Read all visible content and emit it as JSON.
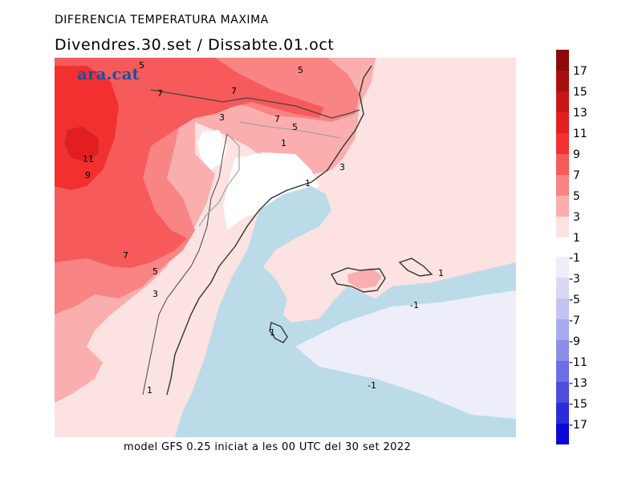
{
  "header": {
    "title": "DIFERENCIA TEMPERATURA MAXIMA",
    "subtitle": "Divendres.30.set  /  Dissabte.01.oct"
  },
  "brand": "ara.cat",
  "footer": "model GFS 0.25 iniciat a les 00 UTC del 30 set 2022",
  "contour_labels": [
    "5",
    "5",
    "7",
    "7",
    "3",
    "7",
    "5",
    "1",
    "11",
    "9",
    "3",
    "1",
    "7",
    "5",
    "3",
    "1",
    "1",
    "-1",
    "1",
    "-1"
  ],
  "legend": {
    "positive": [
      {
        "label": "17",
        "color": "#8b0a0a"
      },
      {
        "label": "15",
        "color": "#a81010"
      },
      {
        "label": "13",
        "color": "#c81616"
      },
      {
        "label": "11",
        "color": "#e21e1e"
      },
      {
        "label": "9",
        "color": "#f23030"
      },
      {
        "label": "7",
        "color": "#f65a5a"
      },
      {
        "label": "5",
        "color": "#f88484"
      },
      {
        "label": "3",
        "color": "#fbaeae"
      },
      {
        "label": "1",
        "color": "#fde2e2"
      }
    ],
    "negative": [
      {
        "label": "-1",
        "color": "#eeeefb"
      },
      {
        "label": "-3",
        "color": "#d9d9f6"
      },
      {
        "label": "-5",
        "color": "#c4c4f2"
      },
      {
        "label": "-7",
        "color": "#a9a9ee"
      },
      {
        "label": "-9",
        "color": "#8e8ee9"
      },
      {
        "label": "-11",
        "color": "#6d6de4"
      },
      {
        "label": "-13",
        "color": "#4c4cdf"
      },
      {
        "label": "-15",
        "color": "#2b2bda"
      },
      {
        "label": "-17",
        "color": "#0a0ad4"
      }
    ]
  },
  "colors": {
    "sea": "#bcdbe8",
    "near_zero_land": "#fde2e2",
    "light_blue_band": "#eeeefb"
  }
}
